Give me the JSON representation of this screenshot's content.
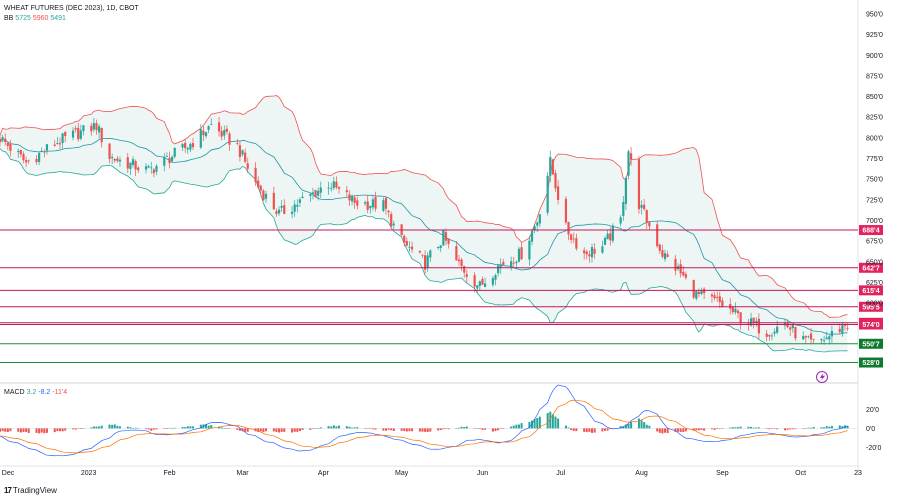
{
  "symbol_title": "WHEAT FUTURES (DEC 2023), 1D, CBOT",
  "bb": {
    "label": "BB",
    "basis": "5725",
    "upper": "5960",
    "lower": "5491"
  },
  "macd": {
    "label": "MACD",
    "hist": "3.2",
    "macd": "-8.2",
    "signal": "-11'4"
  },
  "brand": {
    "logo": "17",
    "text": "TradingView"
  },
  "colors": {
    "up": "#26a69a",
    "down": "#ef5350",
    "red_line": "#c2185b",
    "green_line": "#1b8e3e",
    "bb_basis": "#2196a6",
    "bb_band": "#ef5350",
    "bb_fill": "#e8f4f2",
    "macd_line": "#2962ff",
    "signal_line": "#ff6d00",
    "volatility_icon": "#9c27b0"
  },
  "icons": {
    "volatility": "lightning-circle-icon"
  },
  "chart_data": {
    "type": "candlestick",
    "price_axis": {
      "min": 525,
      "max": 950,
      "ticks": [
        "950'0",
        "925'0",
        "900'0",
        "875'0",
        "850'0",
        "825'0",
        "800'0",
        "775'0",
        "750'0",
        "725'0",
        "700'0",
        "675'0",
        "650'0",
        "625'0",
        "600'0"
      ]
    },
    "macd_axis": {
      "min": -28,
      "max": 32,
      "ticks": [
        "20'0",
        "0'0",
        "-20'0"
      ]
    },
    "time_axis": {
      "labels": [
        "Dec",
        "2023",
        "Feb",
        "Mar",
        "Apr",
        "May",
        "Jun",
        "Jul",
        "Aug",
        "Sep",
        "Oct",
        "23"
      ],
      "start": "2022-11-28",
      "end": "2023-10-23"
    },
    "levels": [
      {
        "price": 688.4,
        "label": "688'4",
        "color": "red"
      },
      {
        "price": 642.7,
        "label": "642'7",
        "color": "red"
      },
      {
        "price": 615.4,
        "label": "615'4",
        "color": "red"
      },
      {
        "price": 595.5,
        "label": "595'5",
        "color": "red"
      },
      {
        "price": 576.1,
        "label": "576'1",
        "color": "red"
      },
      {
        "price": 574.0,
        "label": "574'0",
        "color": "red"
      },
      {
        "price": 550.7,
        "label": "550'7",
        "color": "green"
      },
      {
        "price": 528.0,
        "label": "528'0",
        "color": "green"
      }
    ],
    "close_path": [
      [
        "2022-11-28",
        800
      ],
      [
        "2022-12-08",
        770
      ],
      [
        "2022-12-20",
        795
      ],
      [
        "2023-01-04",
        815
      ],
      [
        "2023-01-09",
        777
      ],
      [
        "2023-01-24",
        760
      ],
      [
        "2023-02-08",
        790
      ],
      [
        "2023-02-17",
        815
      ],
      [
        "2023-02-27",
        790
      ],
      [
        "2023-03-06",
        745
      ],
      [
        "2023-03-15",
        708
      ],
      [
        "2023-03-27",
        730
      ],
      [
        "2023-04-03",
        745
      ],
      [
        "2023-04-13",
        722
      ],
      [
        "2023-04-24",
        718
      ],
      [
        "2023-05-01",
        675
      ],
      [
        "2023-05-10",
        648
      ],
      [
        "2023-05-17",
        680
      ],
      [
        "2023-05-22",
        650
      ],
      [
        "2023-05-31",
        620
      ],
      [
        "2023-06-07",
        645
      ],
      [
        "2023-06-16",
        660
      ],
      [
        "2023-06-22",
        700
      ],
      [
        "2023-06-27",
        770
      ],
      [
        "2023-07-03",
        690
      ],
      [
        "2023-07-10",
        660
      ],
      [
        "2023-07-17",
        668
      ],
      [
        "2023-07-24",
        700
      ],
      [
        "2023-07-27",
        785
      ],
      [
        "2023-07-31",
        720
      ],
      [
        "2023-08-09",
        660
      ],
      [
        "2023-08-15",
        640
      ],
      [
        "2023-08-22",
        610
      ],
      [
        "2023-08-31",
        600
      ],
      [
        "2023-09-08",
        582
      ],
      [
        "2023-09-18",
        565
      ],
      [
        "2023-09-25",
        575
      ],
      [
        "2023-10-02",
        555
      ],
      [
        "2023-10-06",
        550
      ],
      [
        "2023-10-12",
        560
      ],
      [
        "2023-10-18",
        574
      ]
    ],
    "macd_hist_path": [
      [
        "2022-11-28",
        -3
      ],
      [
        "2022-12-15",
        -5
      ],
      [
        "2023-01-10",
        4
      ],
      [
        "2023-01-25",
        -2
      ],
      [
        "2023-02-15",
        4
      ],
      [
        "2023-03-01",
        -3
      ],
      [
        "2023-03-20",
        -4
      ],
      [
        "2023-04-05",
        3
      ],
      [
        "2023-04-25",
        -2
      ],
      [
        "2023-05-10",
        -4
      ],
      [
        "2023-05-25",
        2
      ],
      [
        "2023-06-05",
        -3
      ],
      [
        "2023-06-20",
        8
      ],
      [
        "2023-06-27",
        17
      ],
      [
        "2023-07-05",
        -2
      ],
      [
        "2023-07-15",
        -5
      ],
      [
        "2023-07-25",
        3
      ],
      [
        "2023-07-31",
        10
      ],
      [
        "2023-08-08",
        -5
      ],
      [
        "2023-08-25",
        -2
      ],
      [
        "2023-09-10",
        2
      ],
      [
        "2023-09-25",
        -2
      ],
      [
        "2023-10-05",
        1
      ],
      [
        "2023-10-18",
        3
      ]
    ]
  }
}
